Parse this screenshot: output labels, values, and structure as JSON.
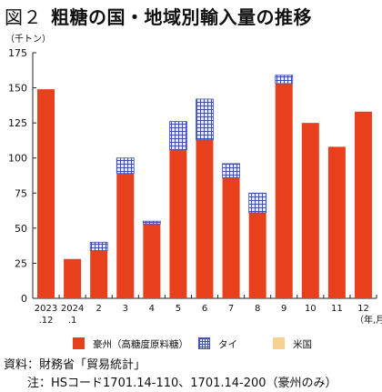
{
  "title_prefix": "図２",
  "title": "粗糖の国・地域別輸入量の推移",
  "unit_label": "（千トン）",
  "x_unit_label": "（年,月）",
  "source": "資料：財務省「貿易統計」",
  "note": "注：HSコード1701.14-110、1701.14-200（豪州のみ）",
  "colors": {
    "australia": "#e8401c",
    "thailand_fill": "#e8eaf6",
    "thailand_grid": "#3f51b5",
    "usa": "#f5d294"
  },
  "chart_data": {
    "type": "bar",
    "stacked": true,
    "categories": [
      [
        "2023",
        ".12"
      ],
      [
        "2024",
        ".1"
      ],
      [
        "2"
      ],
      [
        "3"
      ],
      [
        "4"
      ],
      [
        "5"
      ],
      [
        "6"
      ],
      [
        "7"
      ],
      [
        "8"
      ],
      [
        "9"
      ],
      [
        "10"
      ],
      [
        "11"
      ],
      [
        "12"
      ]
    ],
    "series": [
      {
        "name": "豪州（高糖度原料糖）",
        "color_key": "australia",
        "values": [
          149,
          28,
          34,
          89,
          53,
          106,
          113,
          86,
          61,
          153,
          125,
          108,
          133
        ]
      },
      {
        "name": "タイ",
        "color_key": "thailand",
        "values": [
          0,
          0,
          6,
          11,
          2,
          20,
          29,
          10,
          14,
          6,
          0,
          0,
          0
        ]
      },
      {
        "name": "米国",
        "color_key": "usa",
        "values": [
          0,
          0,
          0,
          0,
          0,
          0,
          0,
          0,
          0,
          0,
          0,
          0,
          0
        ]
      }
    ],
    "ylim": [
      0,
      175
    ],
    "yticks": [
      0,
      25,
      50,
      75,
      100,
      125,
      150,
      175
    ],
    "grid": false,
    "legend_position": "bottom"
  }
}
